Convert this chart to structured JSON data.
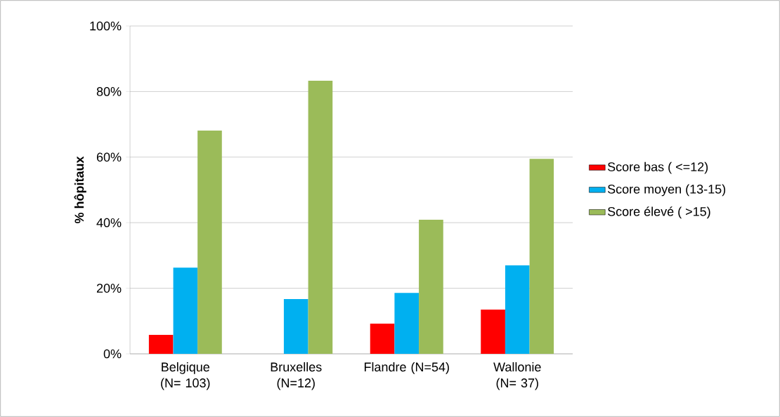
{
  "chart_data": {
    "type": "bar",
    "ylabel": "% hôpitaux",
    "categories": [
      "Belgique (N= 103)",
      "Bruxelles (N=12)",
      "Flandre (N=54)",
      "Wallonie (N= 37)"
    ],
    "series": [
      {
        "name": "Score bas ( <=12)",
        "color": "#ff0000",
        "values": [
          5.8,
          0,
          9.2,
          13.5
        ]
      },
      {
        "name": "Score moyen (13-15)",
        "color": "#00b0f0",
        "values": [
          26.3,
          16.7,
          18.6,
          27.0
        ]
      },
      {
        "name": "Score élevé ( >15)",
        "color": "#9bbb59",
        "values": [
          68.1,
          83.3,
          40.9,
          59.5
        ]
      }
    ],
    "ylim": [
      0,
      100
    ],
    "yticks": [
      {
        "value": 0,
        "label": "0%"
      },
      {
        "value": 20,
        "label": "20%"
      },
      {
        "value": 40,
        "label": "40%"
      },
      {
        "value": 60,
        "label": "60%"
      },
      {
        "value": 80,
        "label": "80%"
      },
      {
        "value": 100,
        "label": "100%"
      }
    ],
    "grid": "y",
    "legend": "right"
  }
}
